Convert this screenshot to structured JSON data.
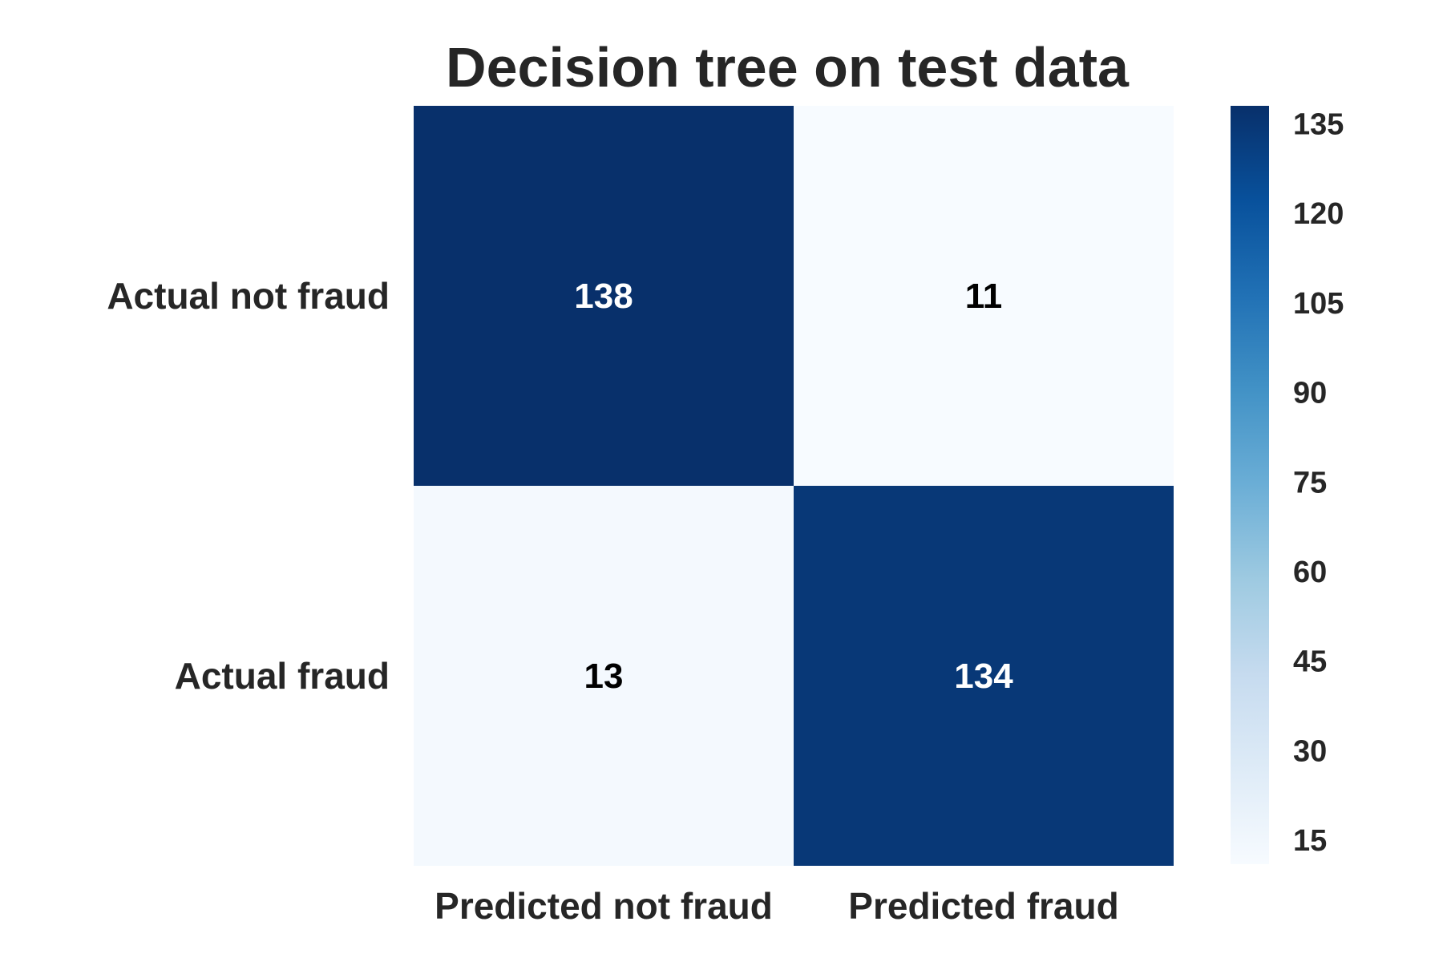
{
  "chart_data": {
    "type": "heatmap",
    "title": "Decision tree on test data",
    "xlabel": "",
    "ylabel": "",
    "x_categories": [
      "Predicted not fraud",
      "Predicted fraud"
    ],
    "y_categories": [
      "Actual not fraud",
      "Actual fraud"
    ],
    "values": [
      [
        138,
        11
      ],
      [
        13,
        134
      ]
    ],
    "colormap": "Blues",
    "color_low": "#f7fbff",
    "color_high": "#08306b",
    "annotation_color_dark_cell": "#ffffff",
    "annotation_color_light_cell": "#000000",
    "colorbar": {
      "range": [
        11,
        138
      ],
      "ticks": [
        15,
        30,
        45,
        60,
        75,
        90,
        105,
        120,
        135
      ]
    },
    "grid": false,
    "legend": "colorbar-right"
  }
}
